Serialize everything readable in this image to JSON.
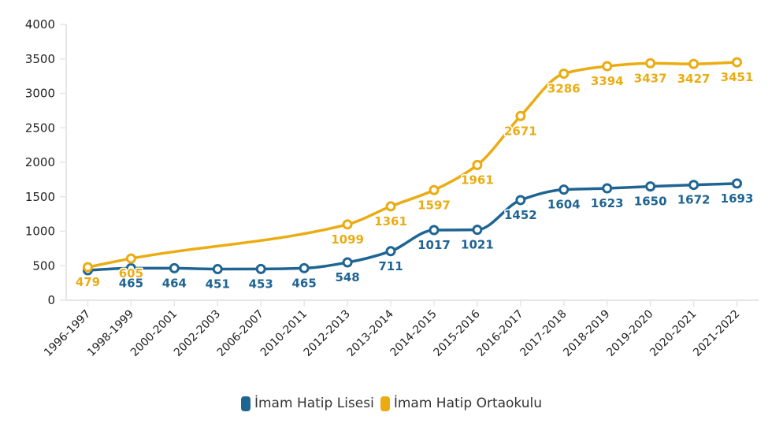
{
  "chart_data": {
    "type": "line",
    "title": "",
    "xlabel": "",
    "ylabel": "",
    "ylim": [
      0,
      4000
    ],
    "yticks": [
      0,
      500,
      1000,
      1500,
      2000,
      2500,
      3000,
      3500,
      4000
    ],
    "grid": false,
    "legend_position": "bottom-center",
    "categories": [
      "1996-1997",
      "1998-1999",
      "2000-2001",
      "2002-2003",
      "2006-2007",
      "2010-2011",
      "2012-2013",
      "2013-2014",
      "2014-2015",
      "2015-2016",
      "2016-2017",
      "2017-2018",
      "2018-2019",
      "2019-2020",
      "2020-2021",
      "2021-2022"
    ],
    "series": [
      {
        "name": "İmam Hatip Lisesi",
        "color": "#1f6593",
        "values": [
          434,
          465,
          464,
          451,
          453,
          465,
          548,
          711,
          1017,
          1021,
          1452,
          1604,
          1623,
          1650,
          1672,
          1693
        ],
        "hidden_labels": [
          0
        ]
      },
      {
        "name": "İmam Hatip Ortaokulu",
        "color": "#ebac12",
        "values": [
          479,
          605,
          null,
          null,
          null,
          null,
          1099,
          1361,
          1597,
          1961,
          2671,
          3286,
          3394,
          3437,
          3427,
          3451
        ],
        "hidden_labels": []
      }
    ]
  }
}
